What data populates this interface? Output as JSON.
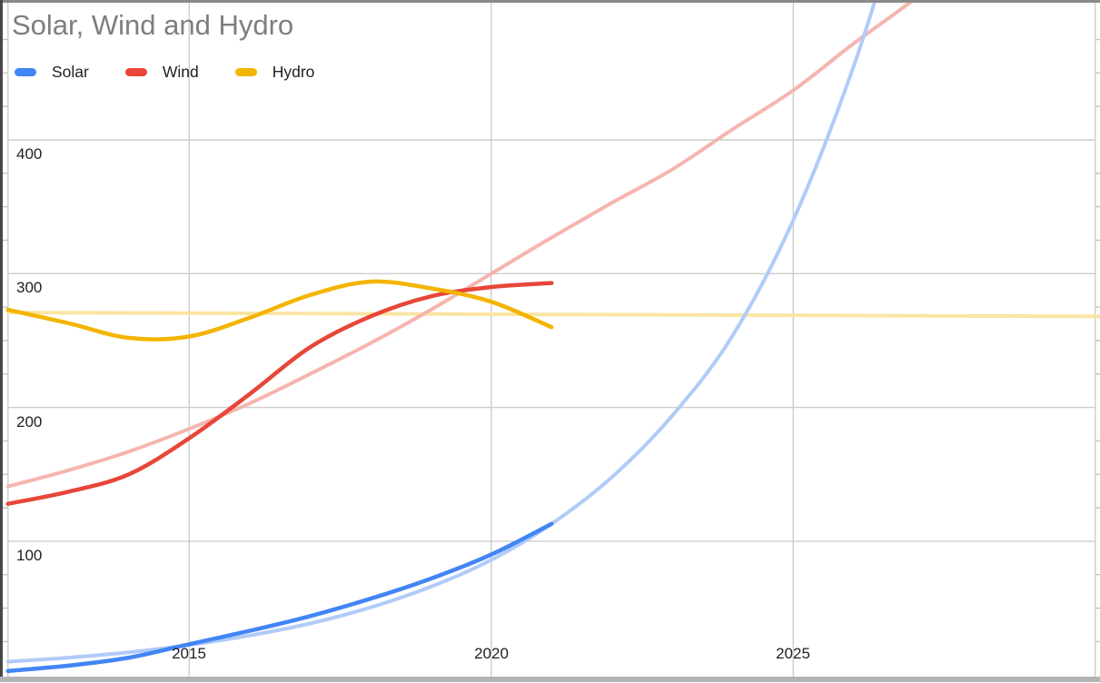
{
  "title": "Solar, Wind and Hydro",
  "legend": {
    "items": [
      {
        "label": "Solar",
        "color": "#4285f4"
      },
      {
        "label": "Wind",
        "color": "#e74638"
      },
      {
        "label": "Hydro",
        "color": "#f4b400"
      }
    ]
  },
  "axes": {
    "x_tick_labels": [
      "2015",
      "2020",
      "2025"
    ],
    "y_tick_labels": [
      "400",
      "300",
      "200",
      "100"
    ]
  },
  "chart_data": {
    "type": "line",
    "title": "Solar, Wind and Hydro",
    "xlabel": "",
    "ylabel": "",
    "x_tick_labels": [
      "2015",
      "2020",
      "2025"
    ],
    "y_tick_labels": [
      "400",
      "300",
      "200",
      "100"
    ],
    "xlim": [
      2012,
      2030.1
    ],
    "ylim": [
      0,
      505
    ],
    "grid": true,
    "legend_position": "top-left",
    "x_gridline_years": [
      2012,
      2015,
      2020,
      2025,
      2030
    ],
    "y_gridline_values": [
      400,
      300,
      200,
      100
    ],
    "y_minor_tick_step": 25,
    "series": [
      {
        "name": "Hydro trendline",
        "role": "trend",
        "color": "#fbe5a3",
        "width": 4,
        "points": [
          [
            2012,
            271
          ],
          [
            2021,
            269.5
          ],
          [
            2030.2,
            268
          ]
        ]
      },
      {
        "name": "Wind trendline",
        "role": "trend",
        "color": "#f5b5ae",
        "width": 4,
        "points": [
          [
            2012,
            141
          ],
          [
            2013,
            153
          ],
          [
            2014,
            167
          ],
          [
            2015,
            184
          ],
          [
            2016,
            203
          ],
          [
            2017,
            225
          ],
          [
            2018,
            248
          ],
          [
            2019,
            273
          ],
          [
            2020,
            300
          ],
          [
            2021,
            327
          ],
          [
            2022,
            353
          ],
          [
            2023,
            378
          ],
          [
            2024,
            408
          ],
          [
            2025,
            437
          ],
          [
            2026,
            472
          ],
          [
            2027,
            505
          ],
          [
            2027.4,
            522
          ]
        ]
      },
      {
        "name": "Solar trendline",
        "role": "trend",
        "color": "#b0cbf8",
        "width": 4,
        "points": [
          [
            2012,
            10
          ],
          [
            2013,
            13
          ],
          [
            2014,
            17
          ],
          [
            2015,
            22.5
          ],
          [
            2016,
            29.5
          ],
          [
            2017,
            38.5
          ],
          [
            2018,
            50.5
          ],
          [
            2019,
            66
          ],
          [
            2020,
            86
          ],
          [
            2021,
            113
          ],
          [
            2022,
            148
          ],
          [
            2023,
            194
          ],
          [
            2024,
            254
          ],
          [
            2025,
            340
          ],
          [
            2026,
            455
          ],
          [
            2026.8,
            570
          ]
        ]
      },
      {
        "name": "Solar",
        "role": "data",
        "color": "#4285f4",
        "width": 4.5,
        "points": [
          [
            2012,
            3
          ],
          [
            2013,
            7
          ],
          [
            2014,
            13
          ],
          [
            2015,
            23
          ],
          [
            2016,
            33
          ],
          [
            2017,
            44
          ],
          [
            2018,
            57
          ],
          [
            2019,
            72
          ],
          [
            2020,
            90
          ],
          [
            2021,
            113
          ]
        ]
      },
      {
        "name": "Wind",
        "role": "data",
        "color": "#e74638",
        "width": 4.5,
        "points": [
          [
            2012,
            128
          ],
          [
            2013,
            137
          ],
          [
            2014,
            150
          ],
          [
            2015,
            177
          ],
          [
            2016,
            210
          ],
          [
            2017,
            245
          ],
          [
            2018,
            268
          ],
          [
            2019,
            283
          ],
          [
            2020,
            290
          ],
          [
            2021,
            293
          ]
        ]
      },
      {
        "name": "Hydro",
        "role": "data",
        "color": "#f4b400",
        "width": 4.5,
        "points": [
          [
            2012,
            273
          ],
          [
            2013,
            263
          ],
          [
            2014,
            252
          ],
          [
            2015,
            253
          ],
          [
            2016,
            267
          ],
          [
            2017,
            284
          ],
          [
            2018,
            294
          ],
          [
            2019,
            289
          ],
          [
            2020,
            279
          ],
          [
            2021,
            260
          ]
        ]
      }
    ]
  }
}
